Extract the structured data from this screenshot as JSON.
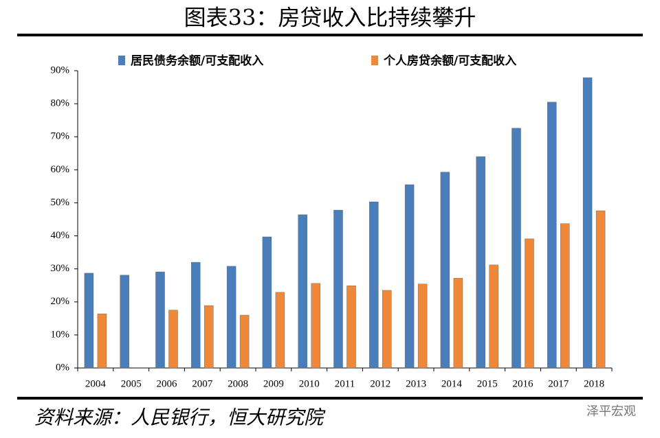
{
  "chart_data": {
    "type": "bar",
    "title": "图表33：房贷收入比持续攀升",
    "source": "资料来源：人民银行，恒大研究院",
    "watermark": "泽平宏观",
    "categories": [
      "2004",
      "2005",
      "2006",
      "2007",
      "2008",
      "2009",
      "2010",
      "2011",
      "2012",
      "2013",
      "2014",
      "2015",
      "2016",
      "2017",
      "2018"
    ],
    "series": [
      {
        "name": "居民债务余额/可支配收入",
        "color": "#4a7ebb",
        "values": [
          28.7,
          28.1,
          29.1,
          32.0,
          30.8,
          39.7,
          46.4,
          47.8,
          50.3,
          55.5,
          59.3,
          64.0,
          72.6,
          80.5,
          87.9
        ]
      },
      {
        "name": "个人房贷余额/可支配收入",
        "color": "#f0883a",
        "values": [
          16.4,
          null,
          17.5,
          18.9,
          16.0,
          22.9,
          25.6,
          24.9,
          23.5,
          25.4,
          27.2,
          31.2,
          39.1,
          43.7,
          47.6
        ]
      }
    ],
    "ylim": [
      0,
      90
    ],
    "yticks": [
      {
        "value": 0,
        "label": "0%"
      },
      {
        "value": 10,
        "label": "10%"
      },
      {
        "value": 20,
        "label": "20%"
      },
      {
        "value": 30,
        "label": "30%"
      },
      {
        "value": 40,
        "label": "40%"
      },
      {
        "value": 50,
        "label": "50%"
      },
      {
        "value": 60,
        "label": "60%"
      },
      {
        "value": 70,
        "label": "70%"
      },
      {
        "value": 80,
        "label": "80%"
      },
      {
        "value": 90,
        "label": "90%"
      }
    ],
    "grid": false
  }
}
